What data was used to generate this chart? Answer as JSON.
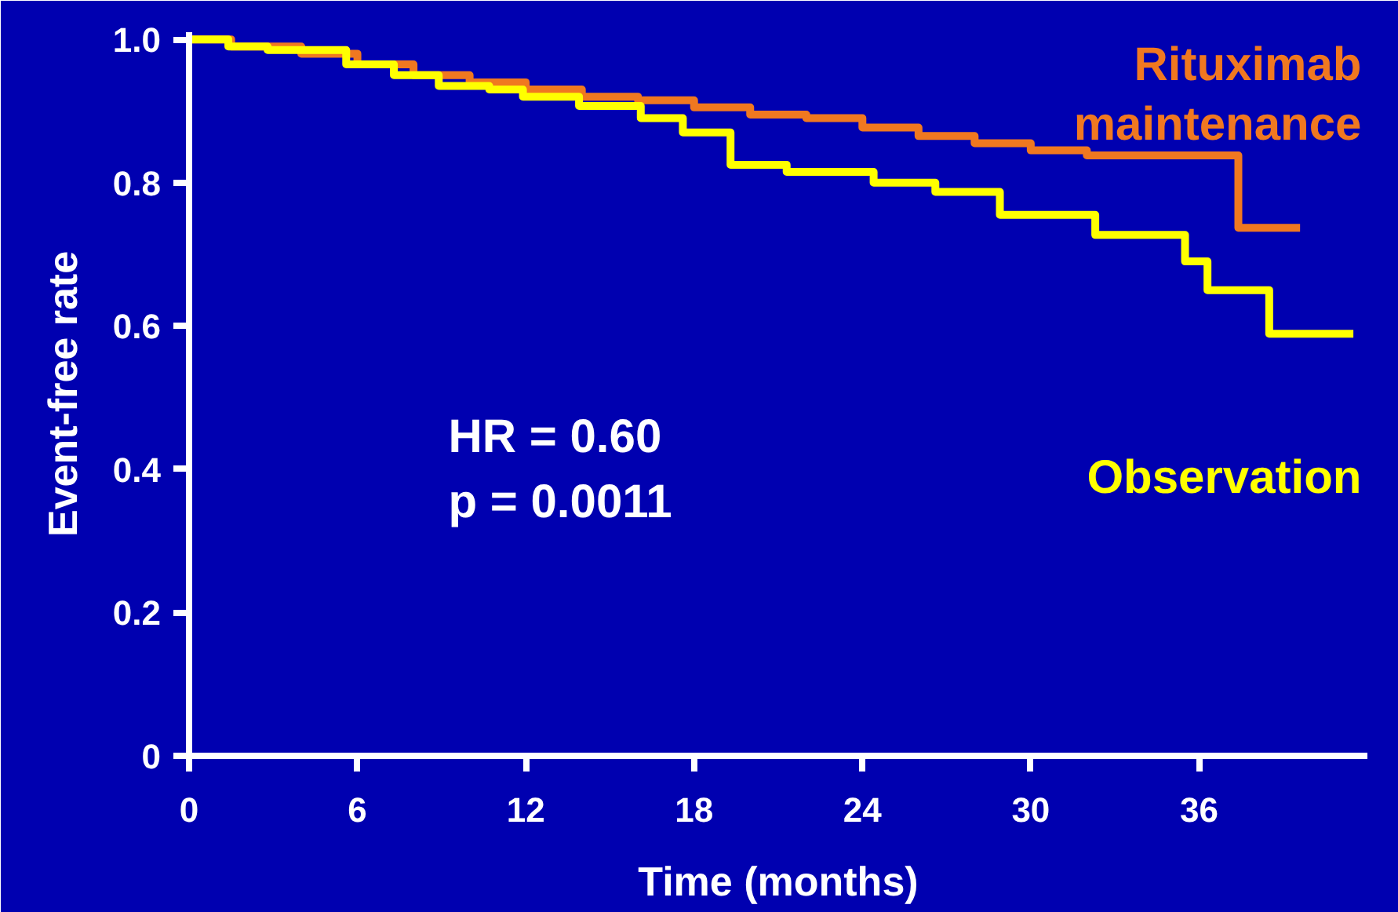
{
  "chart_data": {
    "type": "step",
    "xlabel": "Time (months)",
    "ylabel": "Event-free rate",
    "xlim": [
      0,
      42
    ],
    "ylim": [
      0,
      1.01
    ],
    "xticks": [
      0,
      6,
      12,
      18,
      24,
      30,
      36
    ],
    "yticks": [
      {
        "value": 0,
        "label": "0"
      },
      0.2,
      0.4,
      0.6,
      0.8,
      {
        "value": 1.0,
        "label": "1.0"
      }
    ],
    "annotations": [
      "HR = 0.60",
      "p = 0.0011"
    ],
    "series": [
      {
        "name": "Rituximab maintenance",
        "color": "#f07820",
        "x": [
          0,
          1.5,
          4,
          6,
          8,
          10,
          12,
          14,
          16,
          18,
          20,
          22,
          24,
          26,
          28,
          30,
          32,
          37.4,
          39.6
        ],
        "values": [
          1.0,
          0.99,
          0.98,
          0.965,
          0.95,
          0.94,
          0.93,
          0.92,
          0.915,
          0.905,
          0.895,
          0.89,
          0.877,
          0.865,
          0.855,
          0.845,
          0.838,
          0.737,
          0.737
        ]
      },
      {
        "name": "Observation",
        "color": "#ffff00",
        "x": [
          0,
          1.4,
          2.8,
          5.6,
          7.3,
          8.9,
          10.7,
          11.9,
          13.9,
          16.1,
          17.6,
          19.3,
          21.3,
          24.4,
          26.6,
          28.9,
          32.3,
          35.5,
          36.3,
          38.5,
          41.5
        ],
        "values": [
          1.0,
          0.99,
          0.985,
          0.965,
          0.95,
          0.935,
          0.93,
          0.92,
          0.907,
          0.89,
          0.87,
          0.825,
          0.815,
          0.8,
          0.787,
          0.755,
          0.727,
          0.69,
          0.65,
          0.589,
          0.589
        ]
      }
    ]
  }
}
